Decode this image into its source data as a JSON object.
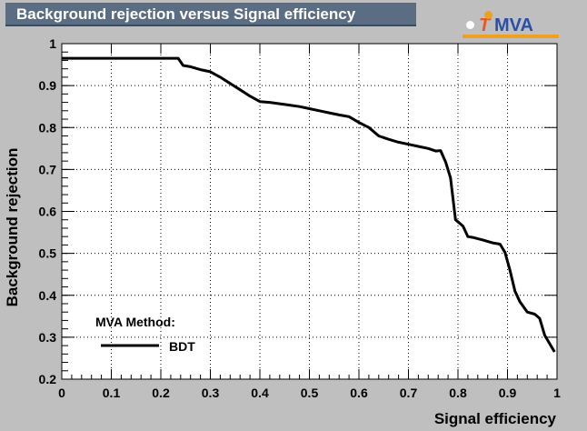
{
  "title": "Background rejection versus Signal efficiency",
  "logo": {
    "t": "T",
    "mva": "MVA"
  },
  "legend": {
    "header": "MVA Method:",
    "entry": "BDT"
  },
  "colors": {
    "frame_bg": "#ffffff",
    "page_bg": "#bfbfbf",
    "title_bg": "#5b6d82",
    "line": "#000000"
  },
  "chart_data": {
    "type": "line",
    "title": "Background rejection versus Signal efficiency",
    "xlabel": "Signal efficiency",
    "ylabel": "Background rejection",
    "xlim": [
      0,
      1
    ],
    "ylim": [
      0.2,
      1
    ],
    "xticks": [
      "0",
      "0.1",
      "0.2",
      "0.3",
      "0.4",
      "0.5",
      "0.6",
      "0.7",
      "0.8",
      "0.9",
      "1"
    ],
    "yticks": [
      "0.2",
      "0.3",
      "0.4",
      "0.5",
      "0.6",
      "0.7",
      "0.8",
      "0.9",
      "1"
    ],
    "grid": true,
    "legend_position": "bottom-left",
    "series": [
      {
        "name": "BDT",
        "x": [
          0.0,
          0.05,
          0.1,
          0.15,
          0.2,
          0.235,
          0.245,
          0.26,
          0.28,
          0.3,
          0.32,
          0.34,
          0.36,
          0.38,
          0.4,
          0.42,
          0.45,
          0.48,
          0.5,
          0.52,
          0.54,
          0.56,
          0.58,
          0.6,
          0.62,
          0.64,
          0.66,
          0.68,
          0.7,
          0.72,
          0.74,
          0.755,
          0.765,
          0.775,
          0.785,
          0.795,
          0.81,
          0.82,
          0.83,
          0.85,
          0.87,
          0.885,
          0.895,
          0.905,
          0.915,
          0.925,
          0.94,
          0.955,
          0.965,
          0.975,
          0.985,
          0.995
        ],
        "y": [
          0.965,
          0.965,
          0.965,
          0.965,
          0.965,
          0.965,
          0.948,
          0.945,
          0.938,
          0.933,
          0.92,
          0.905,
          0.89,
          0.875,
          0.862,
          0.86,
          0.855,
          0.85,
          0.845,
          0.84,
          0.835,
          0.83,
          0.826,
          0.812,
          0.8,
          0.78,
          0.772,
          0.765,
          0.76,
          0.755,
          0.75,
          0.744,
          0.745,
          0.718,
          0.68,
          0.58,
          0.565,
          0.54,
          0.538,
          0.532,
          0.525,
          0.522,
          0.502,
          0.46,
          0.41,
          0.385,
          0.36,
          0.355,
          0.345,
          0.305,
          0.285,
          0.265
        ]
      }
    ]
  }
}
